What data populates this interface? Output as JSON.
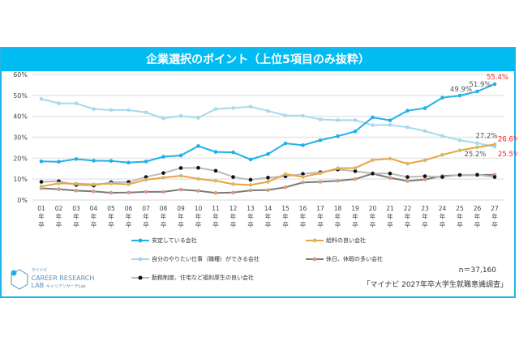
{
  "chart_data": {
    "type": "line",
    "title": "企業選択のポイント（上位5項目のみ抜粋）",
    "categories": [
      "01\n年\n卒",
      "02\n年\n卒",
      "03\n年\n卒",
      "04\n年\n卒",
      "05\n年\n卒",
      "06\n年\n卒",
      "07\n年\n卒",
      "08\n年\n卒",
      "09\n年\n卒",
      "10\n年\n卒",
      "11\n年\n卒",
      "12\n年\n卒",
      "13\n年\n卒",
      "14\n年\n卒",
      "15\n年\n卒",
      "16\n年\n卒",
      "17\n年\n卒",
      "18\n年\n卒",
      "19\n年\n卒",
      "20\n年\n卒",
      "21\n年\n卒",
      "22\n年\n卒",
      "23\n年\n卒",
      "24\n年\n卒",
      "25\n年\n卒",
      "26\n年\n卒",
      "27\n年\n卒"
    ],
    "yticks": [
      "0%",
      "10%",
      "20%",
      "30%",
      "40%",
      "50%",
      "60%"
    ],
    "ylim": [
      0,
      60
    ],
    "grid": true,
    "legend": "bottom",
    "series": [
      {
        "name": "安定している会社",
        "color": "#1fb0ea",
        "marker": "#1fb0ea",
        "values": [
          18.5,
          18.3,
          19.6,
          18.8,
          18.7,
          17.9,
          18.4,
          20.7,
          21.3,
          25.8,
          23.0,
          22.8,
          19.4,
          22.0,
          27.1,
          26.2,
          28.6,
          30.5,
          32.8,
          39.5,
          38.1,
          42.7,
          43.9,
          48.9,
          49.9,
          51.9,
          55.4
        ]
      },
      {
        "name": "給料の良い会社",
        "color": "#f0a040",
        "marker": "#c8c070",
        "values": [
          6.5,
          8.0,
          7.8,
          7.5,
          7.9,
          7.5,
          9.7,
          10.7,
          11.6,
          10.1,
          9.2,
          7.6,
          7.2,
          8.7,
          12.4,
          11.1,
          12.8,
          15.2,
          15.3,
          19.1,
          19.8,
          17.4,
          19.0,
          21.6,
          23.7,
          25.2,
          26.6
        ]
      },
      {
        "name": "自分のやりたい仕事（職種）ができる会社",
        "color": "#a8d8ee",
        "marker": "#a8d8ee",
        "values": [
          48.3,
          46.2,
          46.2,
          43.5,
          43.0,
          43.0,
          41.9,
          39.0,
          40.2,
          39.3,
          43.5,
          44.0,
          44.6,
          42.6,
          40.4,
          40.3,
          38.5,
          38.2,
          38.2,
          35.8,
          35.9,
          34.8,
          33.0,
          30.6,
          28.6,
          27.2,
          25.5
        ]
      },
      {
        "name": "休日、休暇の多い会社",
        "color": "#7a7a7a",
        "marker": "#d89a80",
        "values": [
          5.6,
          5.2,
          4.5,
          4.1,
          3.5,
          3.6,
          3.9,
          3.9,
          5.0,
          4.4,
          3.4,
          3.6,
          4.6,
          4.8,
          6.1,
          8.4,
          8.7,
          9.2,
          10.0,
          12.6,
          10.6,
          9.1,
          9.8,
          11.5,
          11.9,
          11.9,
          12.1
        ]
      },
      {
        "name": "勤務制度、住宅など福利厚生の良い会社",
        "color": "#bbbbbb",
        "marker": "#111111",
        "values": [
          8.7,
          9.0,
          7.2,
          6.9,
          8.5,
          8.6,
          11.0,
          12.9,
          15.3,
          15.4,
          14.0,
          11.0,
          9.7,
          10.7,
          11.3,
          12.5,
          13.3,
          14.6,
          13.8,
          12.7,
          12.7,
          11.0,
          11.4,
          11.0,
          12.0,
          12.1,
          11.0
        ]
      }
    ],
    "annotations": [
      {
        "text": "55.4%",
        "series": 0,
        "index": 26,
        "color": "#ff2020"
      },
      {
        "text": "51.9%",
        "series": 0,
        "index": 25,
        "color": "#555555"
      },
      {
        "text": "49.9%",
        "series": 0,
        "index": 24,
        "color": "#555555"
      },
      {
        "text": "27.2%",
        "series": 2,
        "index": 25,
        "color": "#555555"
      },
      {
        "text": "26.6%",
        "series": 1,
        "index": 26,
        "color": "#ff2020"
      },
      {
        "text": "25.2%",
        "series": 1,
        "index": 25,
        "color": "#555555"
      },
      {
        "text": "25.5%",
        "series": 2,
        "index": 26,
        "color": "#ff2020"
      }
    ]
  },
  "footer": {
    "n": "n＝37,160",
    "source": "「マイナビ 2027年卒大学生就職意識調査」",
    "logo_top": "マイナビ",
    "logo_main": "CAREER RESEARCH",
    "logo_lab": "LAB",
    "logo_sub": "キャリアリサーチLab"
  }
}
